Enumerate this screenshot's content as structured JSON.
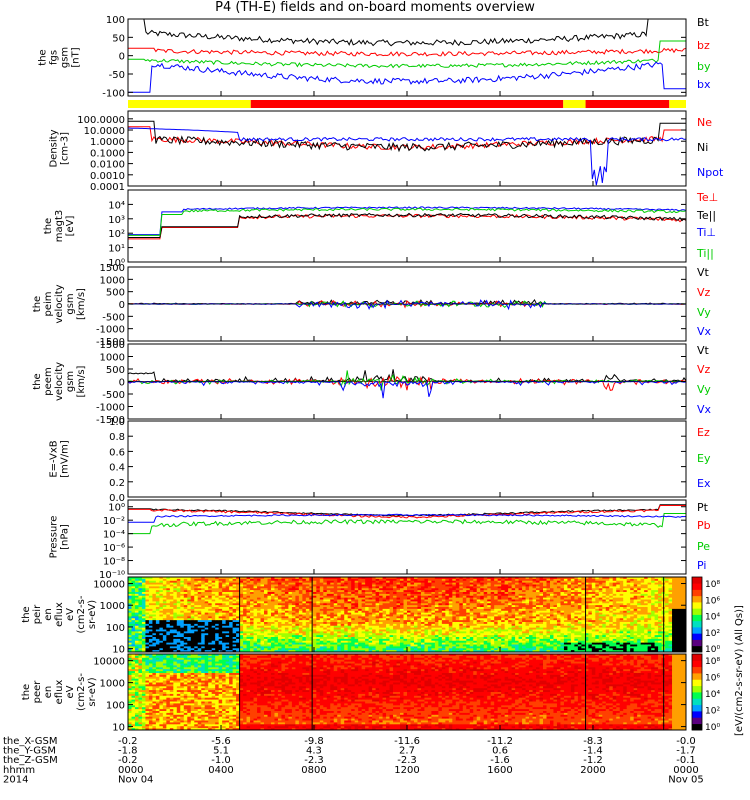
{
  "title": "P4 (TH-E) fields and on-board moments overview",
  "colors": {
    "black": "#000000",
    "red": "#ff0000",
    "green": "#00cc00",
    "blue": "#0000ff",
    "yellow": "#ffff00"
  },
  "chart_data": [
    {
      "type": "line",
      "ylabel": [
        "the",
        "fgs",
        "gsm",
        "[nT]"
      ],
      "ylim": [
        -110,
        100
      ],
      "yticks": [
        "100",
        "50",
        "0",
        "-50",
        "-100"
      ],
      "ytick_values": [
        100,
        50,
        0,
        -50,
        -100
      ],
      "series": [
        {
          "name": "Bt",
          "color": "#000000"
        },
        {
          "name": "bz",
          "color": "#ff0000"
        },
        {
          "name": "by",
          "color": "#00cc00"
        },
        {
          "name": "bx",
          "color": "#0000ff"
        }
      ]
    },
    {
      "type": "bar",
      "name": "mode-bar",
      "segments": [
        {
          "from": 0,
          "to": 0.22,
          "color": "#ffff00"
        },
        {
          "from": 0.22,
          "to": 0.78,
          "color": "#ff0000"
        },
        {
          "from": 0.78,
          "to": 0.82,
          "color": "#ffff00"
        },
        {
          "from": 0.82,
          "to": 0.97,
          "color": "#ff0000"
        },
        {
          "from": 0.97,
          "to": 1,
          "color": "#ffff00"
        }
      ]
    },
    {
      "type": "line",
      "log": true,
      "ylabel": [
        "Density",
        "[cm-3]"
      ],
      "ylim": [
        0.0001,
        500
      ],
      "yticks": [
        "100.0000",
        "10.0000",
        "1.0000",
        "0.1000",
        "0.0100",
        "0.0010",
        "0.0001"
      ],
      "ytick_values": [
        100,
        10,
        1,
        0.1,
        0.01,
        0.001,
        0.0001
      ],
      "series": [
        {
          "name": "Ne",
          "color": "#ff0000"
        },
        {
          "name": "Ni",
          "color": "#000000"
        },
        {
          "name": "Npot",
          "color": "#0000ff"
        }
      ]
    },
    {
      "type": "line",
      "log": true,
      "ylabel": [
        "the",
        "magt3",
        "[eV]"
      ],
      "ylim": [
        1,
        100000
      ],
      "yticks": [
        "10⁴",
        "10³",
        "10²",
        "10¹",
        "10⁰"
      ],
      "ytick_values": [
        10000,
        1000,
        100,
        10,
        1
      ],
      "series": [
        {
          "name": "Te⊥",
          "color": "#ff0000"
        },
        {
          "name": "Te||",
          "color": "#000000"
        },
        {
          "name": "Ti⊥",
          "color": "#0000ff"
        },
        {
          "name": "Ti||",
          "color": "#00cc00"
        }
      ]
    },
    {
      "type": "line",
      "ylabel": [
        "the",
        "peim",
        "velocity",
        "gsm",
        "[km/s]"
      ],
      "ylim": [
        -1500,
        1500
      ],
      "yticks": [
        "1500",
        "1000",
        "500",
        "0",
        "-500",
        "-1000",
        "-1500"
      ],
      "ytick_values": [
        1500,
        1000,
        500,
        0,
        -500,
        -1000,
        -1500
      ],
      "series": [
        {
          "name": "Vt",
          "color": "#000000"
        },
        {
          "name": "Vz",
          "color": "#ff0000"
        },
        {
          "name": "Vy",
          "color": "#00cc00"
        },
        {
          "name": "Vx",
          "color": "#0000ff"
        }
      ]
    },
    {
      "type": "line",
      "ylabel": [
        "the",
        "peem",
        "velocity",
        "gsm",
        "[km/s]"
      ],
      "ylim": [
        -1500,
        1500
      ],
      "yticks": [
        "1500",
        "1000",
        "500",
        "0",
        "-500",
        "-1000",
        "-1500"
      ],
      "ytick_values": [
        1500,
        1000,
        500,
        0,
        -500,
        -1000,
        -1500
      ],
      "series": [
        {
          "name": "Vt",
          "color": "#000000"
        },
        {
          "name": "Vz",
          "color": "#ff0000"
        },
        {
          "name": "Vy",
          "color": "#00cc00"
        },
        {
          "name": "Vx",
          "color": "#0000ff"
        }
      ]
    },
    {
      "type": "line",
      "ylabel": [
        "E=-VxB",
        "[mV/m]"
      ],
      "ylim": [
        0,
        1
      ],
      "yticks": [
        "1.0",
        "0.8",
        "0.6",
        "0.4",
        "0.2",
        "0.0"
      ],
      "ytick_values": [
        1,
        0.8,
        0.6,
        0.4,
        0.2,
        0
      ],
      "series": [
        {
          "name": "Ez",
          "color": "#ff0000"
        },
        {
          "name": "Ey",
          "color": "#00cc00"
        },
        {
          "name": "Ex",
          "color": "#0000ff"
        }
      ]
    },
    {
      "type": "line",
      "log": true,
      "ylabel": [
        "Pressure",
        "[nPa]"
      ],
      "ylim": [
        1e-10,
        10
      ],
      "yticks": [
        "10⁰",
        "10⁻²",
        "10⁻⁴",
        "10⁻⁶",
        "10⁻⁸",
        "10⁻¹⁰"
      ],
      "ytick_values": [
        1,
        0.01,
        0.0001,
        1e-06,
        1e-08,
        1e-10
      ],
      "series": [
        {
          "name": "Pt",
          "color": "#000000"
        },
        {
          "name": "Pb",
          "color": "#ff0000"
        },
        {
          "name": "Pe",
          "color": "#00cc00"
        },
        {
          "name": "Pi",
          "color": "#0000ff"
        }
      ]
    },
    {
      "type": "heatmap",
      "log": true,
      "ylabel": [
        "the",
        "peir",
        "en",
        "eflux",
        "eV",
        "(cm2-s-",
        "sr-eV)"
      ],
      "ylim": [
        7,
        20000
      ],
      "yticks": [
        "10000",
        "1000",
        "100",
        "10"
      ],
      "ytick_values": [
        10000,
        1000,
        100,
        10
      ],
      "colorbar_ticks": [
        "10⁸",
        "10⁶",
        "10⁴",
        "10²",
        "10⁰"
      ],
      "colorbar_label": "eV/(cm2-s-sr-eV) (All Qs)"
    },
    {
      "type": "heatmap",
      "log": true,
      "ylabel": [
        "the",
        "peer",
        "en",
        "eflux",
        "eV",
        "(cm2-s-",
        "sr-eV)"
      ],
      "ylim": [
        7,
        20000
      ],
      "yticks": [
        "10000",
        "1000",
        "100",
        "10"
      ],
      "ytick_values": [
        10000,
        1000,
        100,
        10
      ],
      "colorbar_ticks": [
        "10⁸",
        "10⁶",
        "10⁴",
        "10²",
        "10⁰"
      ],
      "colorbar_label": "eV/(cm2-s-sr-eV) (All Qs)"
    }
  ],
  "xaxis": {
    "row_labels": [
      "the_X-GSM",
      "the_Y-GSM",
      "the_Z-GSM",
      "hhmm",
      "2014"
    ],
    "tick_positions": [
      0,
      0.1667,
      0.3333,
      0.5,
      0.6667,
      0.8333,
      1
    ],
    "rows": [
      [
        "-0.2",
        "-5.6",
        "-9.8",
        "-11.6",
        "-11.2",
        "-8.3",
        "-0.0"
      ],
      [
        "-1.8",
        "5.1",
        "4.3",
        "2.7",
        "0.6",
        "-1.4",
        "-1.7"
      ],
      [
        "-0.2",
        "-1.0",
        "-2.3",
        "-2.3",
        "-1.6",
        "-1.2",
        "-0.1"
      ],
      [
        "0000",
        "0400",
        "0800",
        "1200",
        "1600",
        "2000",
        "0000"
      ],
      [
        "Nov 04",
        "",
        "",
        "",
        "",
        "",
        "Nov 05"
      ]
    ]
  }
}
